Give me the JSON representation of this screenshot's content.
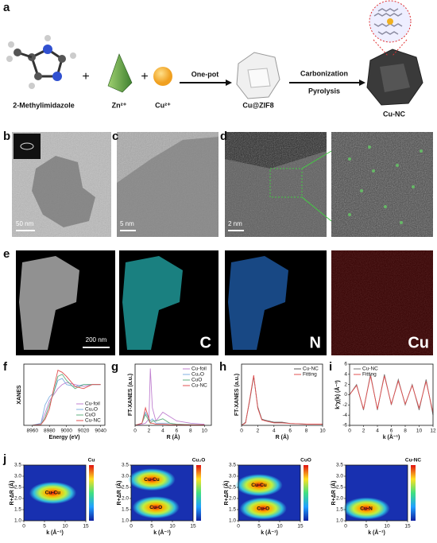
{
  "panel_labels": [
    "a",
    "b",
    "c",
    "d",
    "e",
    "f",
    "g",
    "h",
    "i",
    "j"
  ],
  "scheme": {
    "reactants": [
      "2-Methylimidazole",
      "Zn²⁺",
      "Cu²⁺"
    ],
    "step1": "One-pot",
    "intermediate": "Cu@ZIF8",
    "step2": [
      "Carbonization",
      "Pyrolysis"
    ],
    "product": "Cu-NC"
  },
  "micrographs": {
    "scale_bars": [
      "50 nm",
      "5 nm",
      "2 nm",
      "200 nm"
    ],
    "mapping_elements": [
      "C",
      "N",
      "Cu"
    ]
  },
  "chart_data": [
    {
      "type": "line",
      "xlabel": "Energy (eV)",
      "ylabel": "XANES",
      "legend": "lower right",
      "x": [
        8960,
        8970,
        8975,
        8980,
        8985,
        8990,
        8995,
        9000,
        9010,
        9020,
        9030,
        9040
      ],
      "xlim": [
        8950,
        9045
      ],
      "xticks": [
        8960,
        8980,
        9000,
        9020,
        9040
      ],
      "ylim": [
        0,
        1.5
      ],
      "series": [
        {
          "name": "Cu-foil",
          "color": "#c080d0",
          "values": [
            0,
            0.05,
            0.3,
            0.6,
            0.75,
            0.9,
            1.0,
            1.05,
            1.0,
            0.95,
            1.0,
            1.0
          ]
        },
        {
          "name": "Cu₂O",
          "color": "#80b0e0",
          "values": [
            0,
            0.05,
            0.5,
            0.7,
            0.8,
            1.1,
            1.15,
            1.0,
            0.95,
            1.0,
            1.0,
            1.0
          ]
        },
        {
          "name": "CuO",
          "color": "#60b080",
          "values": [
            0,
            0.02,
            0.2,
            0.5,
            0.8,
            1.2,
            1.25,
            1.1,
            0.9,
            1.0,
            1.0,
            1.0
          ]
        },
        {
          "name": "Cu-NC",
          "color": "#e05050",
          "values": [
            0,
            0.02,
            0.15,
            0.4,
            0.9,
            1.35,
            1.3,
            1.2,
            0.95,
            0.9,
            1.0,
            1.0
          ]
        }
      ]
    },
    {
      "type": "line",
      "xlabel": "R (Å)",
      "ylabel": "FT-XANES (a.u.)",
      "legend": "upper right",
      "x": [
        0,
        1,
        1.5,
        2,
        2.2,
        2.5,
        3,
        4,
        5,
        6,
        8,
        10
      ],
      "xlim": [
        0,
        11
      ],
      "xticks": [
        0,
        2,
        4,
        6,
        8,
        10
      ],
      "ylim": [
        0,
        28
      ],
      "series": [
        {
          "name": "Cu-foil",
          "color": "#c080d0",
          "values": [
            0,
            0.5,
            1,
            3,
            26,
            8,
            2,
            6,
            4,
            2,
            1,
            0.5
          ]
        },
        {
          "name": "Cu₂O",
          "color": "#80b0e0",
          "values": [
            0,
            1,
            6,
            3,
            2,
            3,
            1,
            1,
            1,
            0.5,
            0.3,
            0.2
          ]
        },
        {
          "name": "CuO",
          "color": "#60b080",
          "values": [
            0,
            1,
            5,
            2,
            1,
            2,
            2,
            3,
            1,
            0.5,
            0.3,
            0.2
          ]
        },
        {
          "name": "Cu-NC",
          "color": "#e05050",
          "values": [
            0,
            1,
            8,
            3,
            1,
            1,
            0.5,
            0.5,
            0.3,
            0.3,
            0.2,
            0.2
          ]
        }
      ]
    },
    {
      "type": "line",
      "xlabel": "R (Å)",
      "ylabel": "FT-XANES (a.u.)",
      "legend": "upper right",
      "x": [
        0,
        0.5,
        1,
        1.5,
        2,
        2.5,
        3,
        4,
        5,
        6,
        8,
        10
      ],
      "xlim": [
        0,
        10
      ],
      "xticks": [
        0,
        2,
        4,
        6,
        8,
        10
      ],
      "ylim": [
        0,
        10
      ],
      "series": [
        {
          "name": "Cu-NC",
          "color": "#555555",
          "values": [
            0,
            0.5,
            4,
            8,
            3,
            1,
            0.8,
            0.5,
            0.5,
            0.3,
            0.2,
            0.2
          ]
        },
        {
          "name": "Fitting",
          "color": "#e05050",
          "values": [
            0,
            0.4,
            4.2,
            8.2,
            2.8,
            0.9,
            0.7,
            0.4,
            0.4,
            0.3,
            0.2,
            0.2
          ]
        }
      ]
    },
    {
      "type": "line",
      "xlabel": "k (Å⁻¹)",
      "ylabel": "k³χ(k) (Å⁻³)",
      "legend": "upper left",
      "x": [
        0,
        1,
        2,
        3,
        4,
        5,
        6,
        7,
        8,
        9,
        10,
        11,
        12
      ],
      "xlim": [
        0,
        12
      ],
      "xticks": [
        0,
        2,
        4,
        6,
        8,
        10,
        12
      ],
      "ylim": [
        -6,
        6
      ],
      "yticks": [
        -6,
        -4,
        -2,
        0,
        2,
        4,
        6
      ],
      "series": [
        {
          "name": "Cu-NC",
          "color": "#777777",
          "values": [
            0,
            2,
            -3,
            4,
            -3,
            4,
            -2,
            3,
            -2,
            2,
            -3,
            3,
            -4
          ]
        },
        {
          "name": "Fitting",
          "color": "#e05050",
          "values": [
            0,
            1.8,
            -2.8,
            3.7,
            -2.8,
            3.7,
            -1.8,
            2.7,
            -1.8,
            1.8,
            -2.6,
            2.6,
            -3.5
          ]
        }
      ]
    },
    {
      "type": "contour",
      "title": "Cu",
      "xlabel": "k (Å⁻¹)",
      "ylabel": "R+ΔR (Å)",
      "xlim": [
        0,
        15
      ],
      "xticks": [
        0,
        5,
        10,
        15
      ],
      "ylim": [
        1,
        3.5
      ],
      "yticks": [
        {
          "value": 1,
          "label": "1.0"
        },
        1.5,
        {
          "value": 2,
          "label": "2.0"
        },
        2.5,
        {
          "value": 3,
          "label": "3.0"
        },
        3.5
      ],
      "annotations": [
        {
          "text": "Cu-Cu",
          "x": 7,
          "y": 2.25
        }
      ]
    },
    {
      "type": "contour",
      "title": "Cu₂O",
      "xlabel": "k (Å⁻¹)",
      "ylabel": "R+ΔR (Å)",
      "xlim": [
        0,
        15
      ],
      "xticks": [
        0,
        5,
        10,
        15
      ],
      "ylim": [
        1,
        3.5
      ],
      "yticks": [
        {
          "value": 1,
          "label": "1.0"
        },
        1.5,
        {
          "value": 2,
          "label": "2.0"
        },
        2.5,
        {
          "value": 3,
          "label": "3.0"
        },
        3.5
      ],
      "annotations": [
        {
          "text": "Cu-Cu",
          "x": 5,
          "y": 2.85
        },
        {
          "text": "Cu-O",
          "x": 6,
          "y": 1.6
        }
      ]
    },
    {
      "type": "contour",
      "title": "CuO",
      "xlabel": "k (Å⁻¹)",
      "ylabel": "R+ΔR (Å)",
      "xlim": [
        0,
        15
      ],
      "xticks": [
        0,
        5,
        10,
        15
      ],
      "ylim": [
        1,
        3.5
      ],
      "yticks": [
        {
          "value": 1,
          "label": "1.0"
        },
        1.5,
        {
          "value": 2,
          "label": "2.0"
        },
        2.5,
        {
          "value": 3,
          "label": "3.0"
        },
        3.5
      ],
      "annotations": [
        {
          "text": "Cu-Cu",
          "x": 5,
          "y": 2.6
        },
        {
          "text": "Cu-O",
          "x": 6,
          "y": 1.55
        }
      ]
    },
    {
      "type": "contour",
      "title": "Cu-NC",
      "xlabel": "k (Å⁻¹)",
      "ylabel": "R+ΔR (Å)",
      "xlim": [
        0,
        15
      ],
      "xticks": [
        0,
        5,
        10,
        15
      ],
      "ylim": [
        1,
        3.5
      ],
      "yticks": [
        {
          "value": 1,
          "label": "1.0"
        },
        1.5,
        {
          "value": 2,
          "label": "2.0"
        },
        2.5,
        {
          "value": 3,
          "label": "3.0"
        },
        3.5
      ],
      "annotations": [
        {
          "text": "Cu-N",
          "x": 5,
          "y": 1.55
        }
      ]
    }
  ]
}
